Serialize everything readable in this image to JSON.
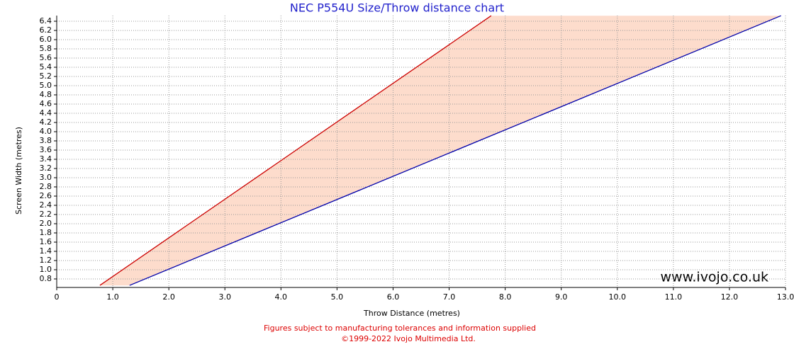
{
  "chart_data": {
    "type": "line",
    "title": "NEC P554U Size/Throw distance chart",
    "xlabel": "Throw Distance (metres)",
    "ylabel": "Screen Width (metres)",
    "xlim": [
      0,
      13
    ],
    "ylim": [
      0.615,
      6.523
    ],
    "xticks": [
      0,
      {
        "value": 1,
        "label": "1.0"
      },
      {
        "value": 2,
        "label": "2.0"
      },
      {
        "value": 3,
        "label": "3.0"
      },
      {
        "value": 4,
        "label": "4.0"
      },
      {
        "value": 5,
        "label": "5.0"
      },
      {
        "value": 6,
        "label": "6.0"
      },
      {
        "value": 7,
        "label": "7.0"
      },
      {
        "value": 8,
        "label": "8.0"
      },
      {
        "value": 9,
        "label": "9.0"
      },
      {
        "value": 10,
        "label": "10.0"
      },
      {
        "value": 11,
        "label": "11.0"
      },
      {
        "value": 12,
        "label": "12.0"
      },
      {
        "value": 13,
        "label": "13.0"
      }
    ],
    "yticks": [
      0.8,
      {
        "value": 1,
        "label": "1.0"
      },
      1.2,
      1.4,
      1.6,
      1.8,
      {
        "value": 2,
        "label": "2.0"
      },
      2.2,
      2.4,
      2.6,
      2.8,
      {
        "value": 3,
        "label": "3.0"
      },
      3.2,
      3.4,
      3.6,
      3.8,
      {
        "value": 4,
        "label": "4.0"
      },
      4.2,
      4.4,
      4.6,
      4.8,
      {
        "value": 5,
        "label": "5.0"
      },
      5.2,
      5.4,
      5.6,
      5.8,
      {
        "value": 6,
        "label": "6.0"
      },
      6.2,
      6.4
    ],
    "grid": true,
    "fill_color": "#fddccc",
    "series": [
      {
        "color": "#cc0000",
        "x": [
          0.77,
          7.75
        ],
        "values": [
          0.66,
          6.52
        ]
      },
      {
        "color": "#0000aa",
        "x": [
          1.3,
          12.92
        ],
        "values": [
          0.66,
          6.52
        ]
      }
    ],
    "watermark": "www.ivojo.co.uk",
    "footnotes": [
      "Figures subject to manufacturing tolerances and information supplied",
      "©1999-2022 Ivojo Multimedia Ltd."
    ]
  }
}
